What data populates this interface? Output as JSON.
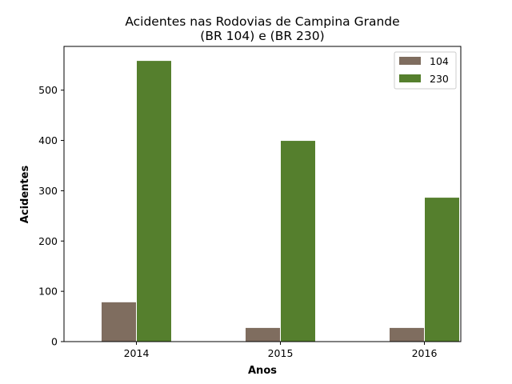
{
  "chart_data": {
    "type": "bar",
    "title_line1": "Acidentes nas Rodovias de Campina Grande",
    "title_line2": "(BR 104) e (BR 230)",
    "xlabel": "Anos",
    "ylabel": "Acidentes",
    "categories": [
      "2014",
      "2015",
      "2016"
    ],
    "series": [
      {
        "name": "104",
        "values": [
          79,
          28,
          28
        ],
        "color": "#7f6d5f"
      },
      {
        "name": "230",
        "values": [
          559,
          400,
          287
        ],
        "color": "#557f2d"
      }
    ],
    "yticks": [
      0,
      100,
      200,
      300,
      400,
      500
    ],
    "ylim": [
      0,
      587
    ],
    "grid": false,
    "legend_position": "top-right"
  }
}
